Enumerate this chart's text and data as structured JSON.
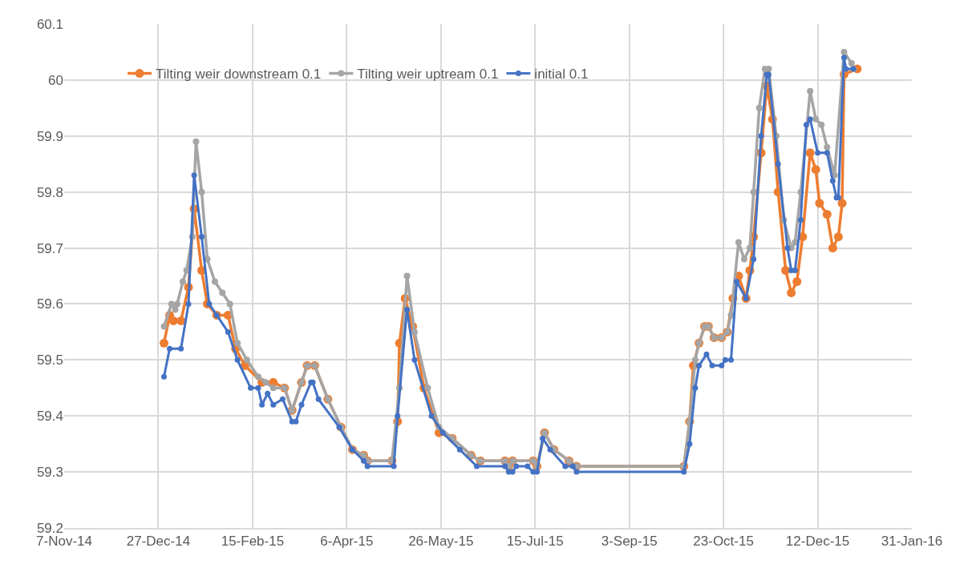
{
  "chart_data": {
    "type": "line",
    "marker": "circle",
    "grid": true,
    "legend": "top left",
    "line_style": "solid",
    "xlim": [
      "2014-11-07",
      "2016-01-31"
    ],
    "xticks": [
      {
        "value": "2014-11-07",
        "label": "7-Nov-14"
      },
      {
        "value": "2014-12-27",
        "label": "27-Dec-14"
      },
      {
        "value": "2015-02-15",
        "label": "15-Feb-15"
      },
      {
        "value": "2015-04-06",
        "label": "6-Apr-15"
      },
      {
        "value": "2015-05-26",
        "label": "26-May-15"
      },
      {
        "value": "2015-07-15",
        "label": "15-Jul-15"
      },
      {
        "value": "2015-09-03",
        "label": "3-Sep-15"
      },
      {
        "value": "2015-10-23",
        "label": "23-Oct-15"
      },
      {
        "value": "2015-12-12",
        "label": "12-Dec-15"
      },
      {
        "value": "2016-01-31",
        "label": "31-Jan-16"
      }
    ],
    "ylim": [
      59.2,
      60.1
    ],
    "yticks": [
      59.2,
      59.3,
      59.4,
      59.5,
      59.6,
      59.7,
      59.8,
      59.9,
      60,
      60.1
    ],
    "series": [
      {
        "name": "Tilting weir downstream 0.1",
        "color": "#ed7d31",
        "x": [
          "2014-12-30",
          "2015-01-02",
          "2015-01-04",
          "2015-01-08",
          "2015-01-12",
          "2015-01-15",
          "2015-01-19",
          "2015-01-22",
          "2015-01-27",
          "2015-02-02",
          "2015-02-06",
          "2015-02-11",
          "2015-02-20",
          "2015-02-26",
          "2015-03-04",
          "2015-03-08",
          "2015-03-13",
          "2015-03-16",
          "2015-03-20",
          "2015-03-27",
          "2015-04-03",
          "2015-04-09",
          "2015-04-15",
          "2015-04-17",
          "2015-04-30",
          "2015-05-03",
          "2015-05-04",
          "2015-05-07",
          "2015-05-11",
          "2015-05-17",
          "2015-05-25",
          "2015-06-01",
          "2015-06-11",
          "2015-06-16",
          "2015-06-29",
          "2015-07-01",
          "2015-07-03",
          "2015-07-14",
          "2015-07-16",
          "2015-07-20",
          "2015-07-25",
          "2015-08-02",
          "2015-08-06",
          "2015-10-02",
          "2015-10-05",
          "2015-10-07",
          "2015-10-10",
          "2015-10-13",
          "2015-10-15",
          "2015-10-18",
          "2015-10-22",
          "2015-10-25",
          "2015-10-28",
          "2015-10-31",
          "2015-11-04",
          "2015-11-06",
          "2015-11-08",
          "2015-11-12",
          "2015-11-15",
          "2015-11-18",
          "2015-11-21",
          "2015-11-25",
          "2015-11-28",
          "2015-12-01",
          "2015-12-04",
          "2015-12-08",
          "2015-12-11",
          "2015-12-13",
          "2015-12-17",
          "2015-12-20",
          "2015-12-23",
          "2015-12-25",
          "2015-12-26",
          "2016-01-02"
        ],
        "values": [
          59.53,
          59.58,
          59.57,
          59.57,
          59.63,
          59.77,
          59.66,
          59.6,
          59.58,
          59.58,
          59.52,
          59.49,
          59.46,
          59.46,
          59.45,
          59.41,
          59.46,
          59.49,
          59.49,
          59.43,
          59.38,
          59.34,
          59.33,
          59.32,
          59.32,
          59.39,
          59.53,
          59.61,
          59.56,
          59.45,
          59.37,
          59.36,
          59.33,
          59.32,
          59.32,
          59.31,
          59.32,
          59.32,
          59.31,
          59.37,
          59.34,
          59.32,
          59.31,
          59.31,
          59.39,
          59.49,
          59.53,
          59.56,
          59.56,
          59.54,
          59.54,
          59.55,
          59.61,
          59.65,
          59.61,
          59.66,
          59.72,
          59.87,
          59.99,
          59.93,
          59.8,
          59.66,
          59.62,
          59.64,
          59.72,
          59.87,
          59.84,
          59.78,
          59.76,
          59.7,
          59.72,
          59.78,
          60.01,
          60.02
        ]
      },
      {
        "name": "Tilting weir uptream 0.1",
        "color": "#a5a5a5",
        "x": [
          "2014-12-30",
          "2015-01-03",
          "2015-01-05",
          "2015-01-06",
          "2015-01-09",
          "2015-01-11",
          "2015-01-14",
          "2015-01-16",
          "2015-01-19",
          "2015-01-22",
          "2015-01-26",
          "2015-01-30",
          "2015-02-03",
          "2015-02-07",
          "2015-02-12",
          "2015-02-18",
          "2015-02-22",
          "2015-02-26",
          "2015-03-04",
          "2015-03-08",
          "2015-03-13",
          "2015-03-16",
          "2015-03-20",
          "2015-03-27",
          "2015-04-03",
          "2015-04-09",
          "2015-04-15",
          "2015-04-17",
          "2015-04-30",
          "2015-05-04",
          "2015-05-08",
          "2015-05-12",
          "2015-05-19",
          "2015-05-25",
          "2015-06-01",
          "2015-06-11",
          "2015-06-16",
          "2015-06-29",
          "2015-07-01",
          "2015-07-03",
          "2015-07-14",
          "2015-07-16",
          "2015-07-20",
          "2015-07-25",
          "2015-08-02",
          "2015-08-06",
          "2015-10-02",
          "2015-10-05",
          "2015-10-08",
          "2015-10-10",
          "2015-10-13",
          "2015-10-15",
          "2015-10-18",
          "2015-10-22",
          "2015-10-25",
          "2015-10-27",
          "2015-10-31",
          "2015-11-03",
          "2015-11-06",
          "2015-11-08",
          "2015-11-11",
          "2015-11-14",
          "2015-11-16",
          "2015-11-20",
          "2015-11-24",
          "2015-11-28",
          "2015-11-30",
          "2015-12-03",
          "2015-12-08",
          "2015-12-11",
          "2015-12-14",
          "2015-12-17",
          "2015-12-21",
          "2015-12-26",
          "2015-12-30",
          "2015-12-31"
        ],
        "values": [
          59.56,
          59.6,
          59.59,
          59.6,
          59.64,
          59.66,
          59.72,
          59.89,
          59.8,
          59.68,
          59.64,
          59.62,
          59.6,
          59.53,
          59.5,
          59.47,
          59.46,
          59.45,
          59.45,
          59.41,
          59.46,
          59.49,
          59.49,
          59.43,
          59.38,
          59.34,
          59.33,
          59.32,
          59.32,
          59.45,
          59.65,
          59.55,
          59.45,
          59.38,
          59.36,
          59.33,
          59.32,
          59.32,
          59.31,
          59.32,
          59.32,
          59.31,
          59.37,
          59.34,
          59.32,
          59.31,
          59.31,
          59.39,
          59.5,
          59.53,
          59.56,
          59.56,
          59.54,
          59.54,
          59.55,
          59.58,
          59.71,
          59.68,
          59.7,
          59.8,
          59.95,
          60.02,
          60.02,
          59.9,
          59.75,
          59.7,
          59.71,
          59.8,
          59.98,
          59.93,
          59.92,
          59.88,
          59.83,
          60.05,
          60.03,
          60.02
        ]
      },
      {
        "name": "initial 0.1",
        "color": "#4472c4",
        "x": [
          "2014-12-30",
          "2015-01-02",
          "2015-01-08",
          "2015-01-12",
          "2015-01-15",
          "2015-01-19",
          "2015-01-23",
          "2015-01-27",
          "2015-02-02",
          "2015-02-07",
          "2015-02-14",
          "2015-02-18",
          "2015-02-20",
          "2015-02-23",
          "2015-02-26",
          "2015-03-03",
          "2015-03-08",
          "2015-03-10",
          "2015-03-13",
          "2015-03-18",
          "2015-03-19",
          "2015-03-22",
          "2015-04-02",
          "2015-04-09",
          "2015-04-15",
          "2015-04-17",
          "2015-05-01",
          "2015-05-03",
          "2015-05-08",
          "2015-05-12",
          "2015-05-21",
          "2015-05-27",
          "2015-06-05",
          "2015-06-14",
          "2015-06-29",
          "2015-07-01",
          "2015-07-03",
          "2015-07-05",
          "2015-07-11",
          "2015-07-14",
          "2015-07-16",
          "2015-07-19",
          "2015-07-23",
          "2015-07-31",
          "2015-08-04",
          "2015-08-06",
          "2015-10-02",
          "2015-10-05",
          "2015-10-08",
          "2015-10-10",
          "2015-10-14",
          "2015-10-17",
          "2015-10-22",
          "2015-10-24",
          "2015-10-27",
          "2015-10-30",
          "2015-11-04",
          "2015-11-08",
          "2015-11-12",
          "2015-11-15",
          "2015-11-16",
          "2015-11-21",
          "2015-11-26",
          "2015-11-28",
          "2015-11-30",
          "2015-12-03",
          "2015-12-06",
          "2015-12-08",
          "2015-12-12",
          "2015-12-17",
          "2015-12-20",
          "2015-12-22",
          "2015-12-23",
          "2015-12-26",
          "2015-12-27",
          "2015-12-31"
        ],
        "values": [
          59.47,
          59.52,
          59.52,
          59.6,
          59.83,
          59.72,
          59.6,
          59.58,
          59.55,
          59.5,
          59.45,
          59.45,
          59.42,
          59.44,
          59.42,
          59.43,
          59.39,
          59.39,
          59.42,
          59.46,
          59.46,
          59.43,
          59.38,
          59.34,
          59.32,
          59.31,
          59.31,
          59.4,
          59.59,
          59.5,
          59.4,
          59.37,
          59.34,
          59.31,
          59.31,
          59.3,
          59.3,
          59.31,
          59.31,
          59.3,
          59.3,
          59.36,
          59.34,
          59.31,
          59.31,
          59.3,
          59.3,
          59.35,
          59.45,
          59.49,
          59.51,
          59.49,
          59.49,
          59.5,
          59.5,
          59.64,
          59.61,
          59.68,
          59.9,
          60.01,
          60.01,
          59.85,
          59.7,
          59.66,
          59.66,
          59.75,
          59.92,
          59.93,
          59.87,
          59.87,
          59.82,
          59.79,
          59.79,
          60.04,
          60.02,
          60.02
        ]
      }
    ]
  }
}
